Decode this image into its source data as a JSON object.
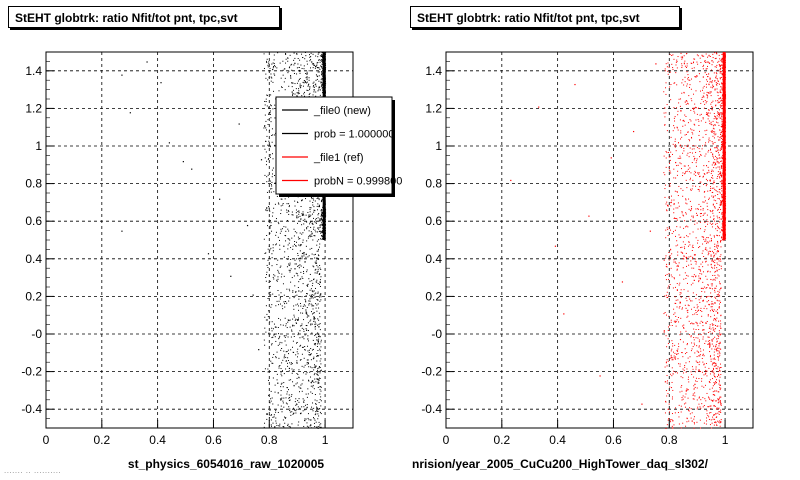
{
  "chart_data": [
    {
      "type": "scatter",
      "title": "StEHT globtrk: ratio Nfit/tot pnt, tpc,svt",
      "xlabel": "st_physics_6054016_raw_1020005",
      "ylabel": "",
      "xlim": [
        0,
        1.1
      ],
      "ylim": [
        -0.5,
        1.5
      ],
      "x_ticks": [
        "0",
        "0.2",
        "0.4",
        "0.6",
        "0.8",
        "1"
      ],
      "y_ticks": [
        "-0.4",
        "-0.2",
        "-0",
        "0.2",
        "0.4",
        "0.6",
        "0.8",
        "1",
        "1.2",
        "1.4"
      ],
      "grid": true,
      "marker_color": "#000000",
      "series": [
        {
          "points": [
            [
              0.27,
              1.38
            ],
            [
              0.36,
              1.45
            ],
            [
              0.41,
              1.34
            ],
            [
              0.3,
              1.18
            ],
            [
              0.44,
              1.02
            ],
            [
              0.49,
              0.92
            ],
            [
              0.52,
              0.88
            ],
            [
              0.27,
              0.55
            ],
            [
              0.58,
              0.43
            ],
            [
              0.62,
              0.72
            ],
            [
              0.66,
              0.31
            ],
            [
              0.69,
              1.12
            ],
            [
              0.72,
              0.58
            ],
            [
              0.74,
              0.21
            ],
            [
              0.76,
              -0.08
            ],
            [
              0.77,
              0.93
            ],
            [
              0.79,
              0.66
            ],
            [
              0.81,
              1.41
            ],
            [
              0.82,
              0.04
            ],
            [
              0.83,
              -0.31
            ],
            [
              0.84,
              1.07
            ],
            [
              0.85,
              0.47
            ],
            [
              0.86,
              0.85
            ],
            [
              0.87,
              -0.18
            ],
            [
              0.88,
              1.29
            ],
            [
              0.89,
              0.35
            ],
            [
              0.9,
              0.76
            ],
            [
              0.91,
              -0.42
            ],
            [
              0.92,
              1.16
            ],
            [
              0.93,
              0.12
            ],
            [
              0.94,
              0.63
            ],
            [
              0.95,
              1.45
            ],
            [
              0.96,
              -0.05
            ],
            [
              0.97,
              0.97
            ],
            [
              0.98,
              0.28
            ],
            [
              0.99,
              1.36
            ]
          ]
        }
      ],
      "legend": {
        "placement": "top-right",
        "entries": [
          {
            "label": "_file0 (new)",
            "color": "#000000"
          },
          {
            "label": "prob = 1.000000",
            "color": "#000000"
          },
          {
            "label": "_file1 (ref)",
            "color": "#ff0000"
          },
          {
            "label": "probN = 0.999800",
            "color": "#ff0000"
          }
        ]
      }
    },
    {
      "type": "scatter",
      "title": "StEHT globtrk: ratio Nfit/tot pnt, tpc,svt",
      "xlabel": "nrision/year_2005_CuCu200_HighTower_daq_sl302/",
      "ylabel": "",
      "xlim": [
        0,
        1.1
      ],
      "ylim": [
        -0.5,
        1.5
      ],
      "x_ticks": [
        "0",
        "0.2",
        "0.4",
        "0.6",
        "0.8",
        "1"
      ],
      "y_ticks": [
        "-0.4",
        "-0.2",
        "-0",
        "0.2",
        "0.4",
        "0.6",
        "0.8",
        "1",
        "1.2",
        "1.4"
      ],
      "grid": true,
      "marker_color": "#ff0000",
      "series": [
        {
          "points": [
            [
              0.23,
              0.82
            ],
            [
              0.33,
              1.21
            ],
            [
              0.39,
              0.47
            ],
            [
              0.42,
              0.11
            ],
            [
              0.46,
              1.33
            ],
            [
              0.51,
              0.63
            ],
            [
              0.55,
              -0.22
            ],
            [
              0.59,
              0.94
            ],
            [
              0.63,
              0.28
            ],
            [
              0.67,
              1.08
            ],
            [
              0.7,
              -0.37
            ],
            [
              0.73,
              0.55
            ],
            [
              0.75,
              1.44
            ],
            [
              0.78,
              0.02
            ],
            [
              0.8,
              0.79
            ],
            [
              0.82,
              -0.13
            ],
            [
              0.84,
              1.19
            ],
            [
              0.86,
              0.41
            ],
            [
              0.88,
              -0.46
            ],
            [
              0.9,
              0.86
            ],
            [
              0.92,
              1.37
            ],
            [
              0.94,
              0.16
            ],
            [
              0.96,
              0.68
            ],
            [
              0.98,
              -0.27
            ],
            [
              0.99,
              1.02
            ]
          ]
        }
      ]
    }
  ],
  "footer_text": "....... .. .........."
}
